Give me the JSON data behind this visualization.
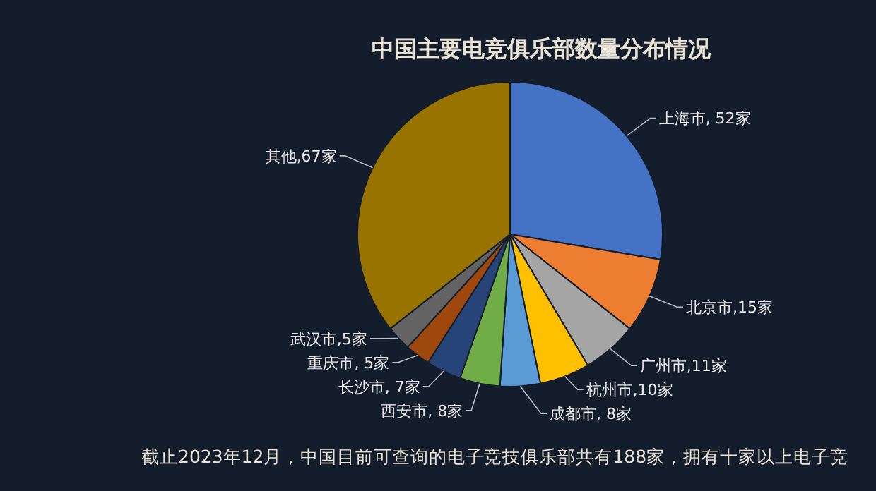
{
  "chart_data": {
    "type": "pie",
    "title": "中国主要电竞俱乐部数量分布情况",
    "categories": [
      "上海市",
      "北京市",
      "广州市",
      "杭州市",
      "成都市",
      "西安市",
      "长沙市",
      "重庆市",
      "武汉市",
      "其他"
    ],
    "values": [
      52,
      15,
      11,
      10,
      8,
      8,
      7,
      5,
      5,
      67
    ],
    "value_labels": [
      ", 52家",
      ",15家",
      ",11家",
      ",10家",
      ", 8家",
      ", 8家",
      ", 7家",
      ", 5家",
      ",5家",
      ",67家"
    ],
    "colors": [
      "#4472c4",
      "#ed7d31",
      "#a5a5a5",
      "#ffc000",
      "#5b9bd5",
      "#70ad47",
      "#264478",
      "#9e480e",
      "#636363",
      "#997300"
    ],
    "annotations": [
      "截止2023年12月，中国目前可查询的电子竞技俱乐部共有188家，拥有十家以上电子竞"
    ]
  }
}
